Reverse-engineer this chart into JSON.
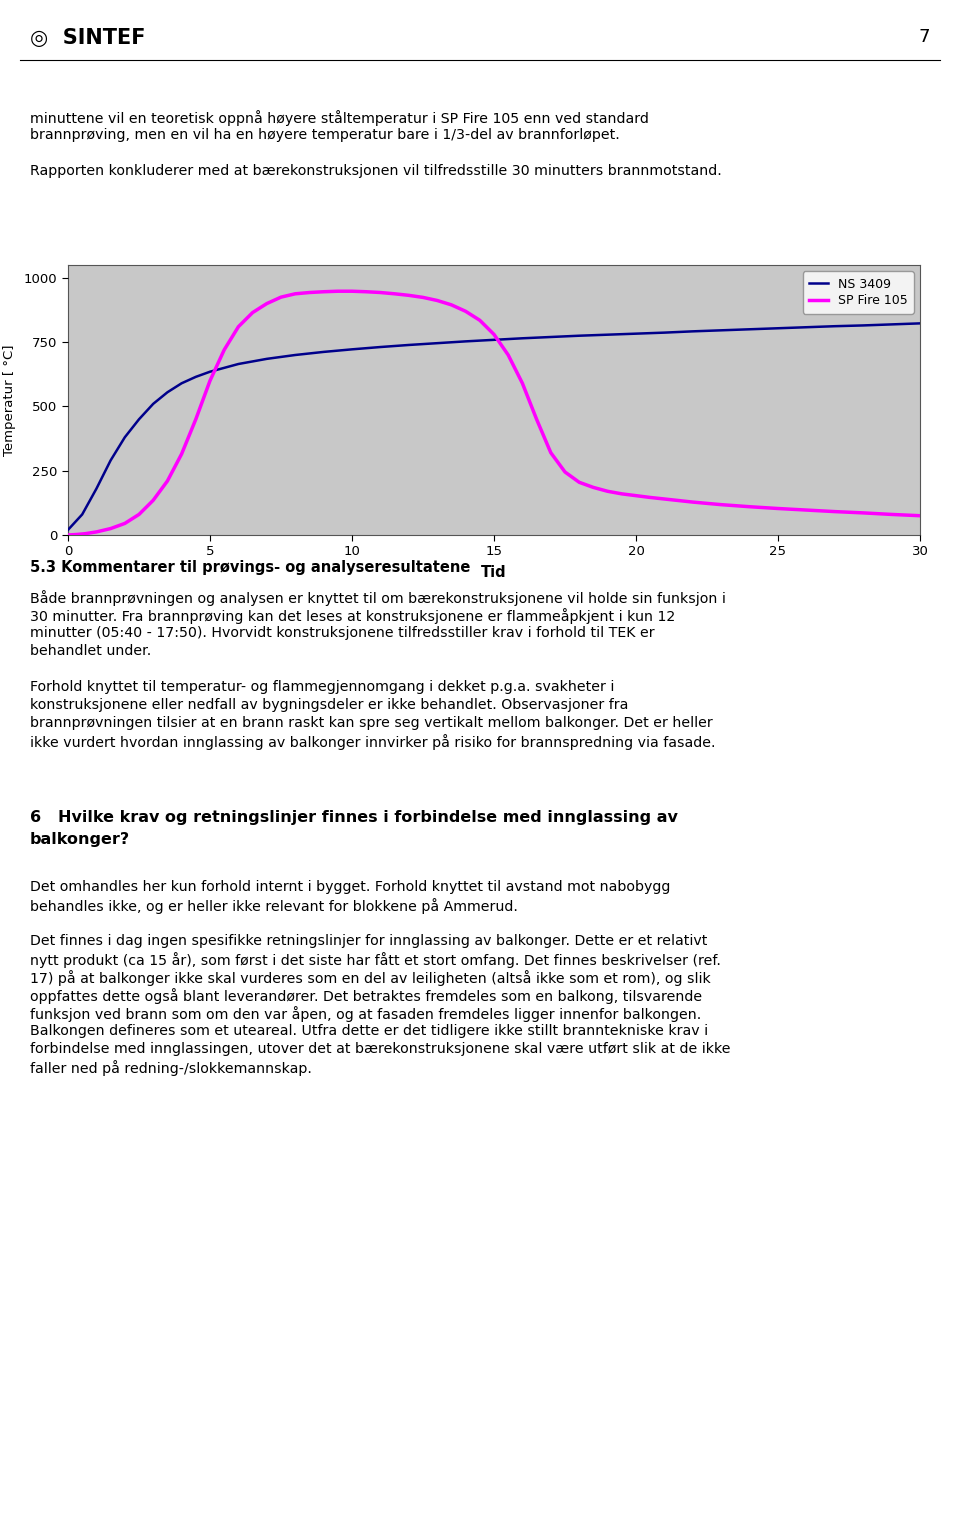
{
  "page_number": "7",
  "background_color": "#ffffff",
  "chart": {
    "plot_bg_color": "#c8c8c8",
    "x_label": "Tid",
    "y_label": "Temperatur [ °C]",
    "x_ticks": [
      0,
      5,
      10,
      15,
      20,
      25,
      30
    ],
    "y_ticks": [
      0,
      250,
      500,
      750,
      1000
    ],
    "x_lim": [
      0,
      30
    ],
    "y_lim": [
      0,
      1050
    ],
    "ns3409_color": "#00008B",
    "sp_fire_color": "#FF00FF",
    "legend_labels": [
      "NS 3409",
      "SP Fire 105"
    ],
    "ns3409_data_x": [
      0,
      0.5,
      1,
      1.5,
      2,
      2.5,
      3,
      3.5,
      4,
      4.5,
      5,
      6,
      7,
      8,
      9,
      10,
      11,
      12,
      13,
      14,
      15,
      16,
      17,
      18,
      19,
      20,
      21,
      22,
      23,
      24,
      25,
      26,
      27,
      28,
      29,
      30
    ],
    "ns3409_data_y": [
      20,
      80,
      180,
      290,
      380,
      450,
      510,
      555,
      590,
      615,
      635,
      665,
      685,
      700,
      712,
      722,
      731,
      739,
      746,
      753,
      759,
      765,
      770,
      775,
      779,
      783,
      787,
      792,
      796,
      800,
      804,
      808,
      812,
      815,
      819,
      823
    ],
    "sp_fire_data_x": [
      0,
      0.3,
      0.6,
      1,
      1.5,
      2,
      2.5,
      3,
      3.5,
      4,
      4.5,
      5,
      5.5,
      6,
      6.5,
      7,
      7.5,
      8,
      8.5,
      9,
      9.5,
      10,
      10.5,
      11,
      11.5,
      12,
      12.5,
      13,
      13.5,
      14,
      14.5,
      15,
      15.5,
      16,
      16.5,
      17,
      17.5,
      18,
      18.5,
      19,
      19.5,
      20,
      20.5,
      21,
      22,
      23,
      24,
      25,
      26,
      27,
      28,
      29,
      30
    ],
    "sp_fire_data_y": [
      0,
      2,
      5,
      12,
      25,
      45,
      80,
      135,
      210,
      315,
      450,
      600,
      720,
      810,
      865,
      900,
      925,
      938,
      943,
      946,
      948,
      948,
      946,
      943,
      938,
      932,
      924,
      912,
      895,
      870,
      835,
      780,
      700,
      590,
      450,
      320,
      245,
      205,
      185,
      170,
      160,
      153,
      146,
      140,
      128,
      118,
      110,
      103,
      97,
      91,
      86,
      80,
      75
    ]
  },
  "intro_text_lines": [
    "minuttene vil en teoretisk oppnå høyere ståltemperatur i SP Fire 105 enn ved standard",
    "brannprøving, men en vil ha en høyere temperatur bare i 1/3-del av brannforløpet.",
    "",
    "Rapporten konkluderer med at bærekonstruksjonen vil tilfredsstille 30 minutters brannmotstand."
  ],
  "section_heading": "5.3 Kommentarer til prøvings- og analyseresultatene",
  "section_text_lines": [
    "Både brannprøvningen og analysen er knyttet til om bærekonstruksjonene vil holde sin funksjon i",
    "30 minutter. Fra brannprøving kan det leses at konstruksjonene er flammeåpkjent i kun 12",
    "minutter (05:40 - 17:50). Hvorvidt konstruksjonene tilfredsstiller krav i forhold til TEK er",
    "behandlet under.",
    "",
    "Forhold knyttet til temperatur- og flammegjennomgang i dekket p.g.a. svakheter i",
    "konstruksjonene eller nedfall av bygningsdeler er ikke behandlet. Observasjoner fra",
    "brannprøvningen tilsier at en brann raskt kan spre seg vertikalt mellom balkonger. Det er heller",
    "ikke vurdert hvordan innglassing av balkonger innvirker på risiko for brannspredning via fasade."
  ],
  "section2_heading_lines": [
    "6   Hvilke krav og retningslinjer finnes i forbindelse med innglassing av",
    "balkonger?"
  ],
  "section2_text_lines": [
    "Det omhandles her kun forhold internt i bygget. Forhold knyttet til avstand mot nabobygg",
    "behandles ikke, og er heller ikke relevant for blokkene på Ammerud.",
    "",
    "Det finnes i dag ingen spesifikke retningslinjer for innglassing av balkonger. Dette er et relativt",
    "nytt produkt (ca 15 år), som først i det siste har fått et stort omfang. Det finnes beskrivelser (ref.",
    "17) på at balkonger ikke skal vurderes som en del av leiligheten (altså ikke som et rom), og slik",
    "oppfattes dette også blant leverandører. Det betraktes fremdeles som en balkong, tilsvarende",
    "funksjon ved brann som om den var åpen, og at fasaden fremdeles ligger innenfor balkongen.",
    "Balkongen defineres som et uteareal. Utfra dette er det tidligere ikke stillt branntekniske krav i",
    "forbindelse med innglassingen, utover det at bærekonstruksjonene skal være utført slik at de ikke",
    "faller ned på redning-/slokkemannskap."
  ]
}
